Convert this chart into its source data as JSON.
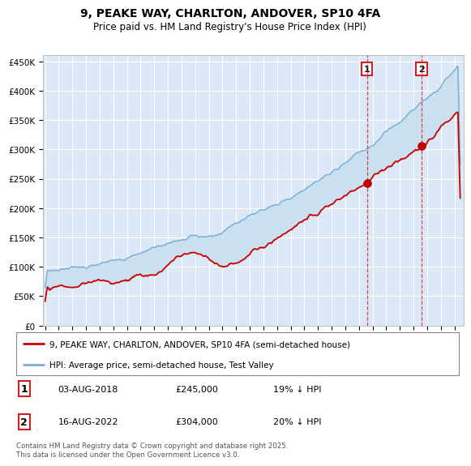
{
  "title": "9, PEAKE WAY, CHARLTON, ANDOVER, SP10 4FA",
  "subtitle": "Price paid vs. HM Land Registry's House Price Index (HPI)",
  "ylim": [
    0,
    460000
  ],
  "yticks": [
    0,
    50000,
    100000,
    150000,
    200000,
    250000,
    300000,
    350000,
    400000,
    450000
  ],
  "ytick_labels": [
    "£0",
    "£50K",
    "£100K",
    "£150K",
    "£200K",
    "£250K",
    "£300K",
    "£350K",
    "£400K",
    "£450K"
  ],
  "plot_bg_color": "#dce8f5",
  "hpi_color": "#7ab0d4",
  "price_color": "#cc0000",
  "shade_color": "#c8dff0",
  "marker1_price": 245000,
  "marker2_price": 304000,
  "legend_entry1": "9, PEAKE WAY, CHARLTON, ANDOVER, SP10 4FA (semi-detached house)",
  "legend_entry2": "HPI: Average price, semi-detached house, Test Valley",
  "footer": "Contains HM Land Registry data © Crown copyright and database right 2025.\nThis data is licensed under the Open Government Licence v3.0.",
  "vline_color": "#cc2222",
  "grid_color": "#b8cfe0"
}
